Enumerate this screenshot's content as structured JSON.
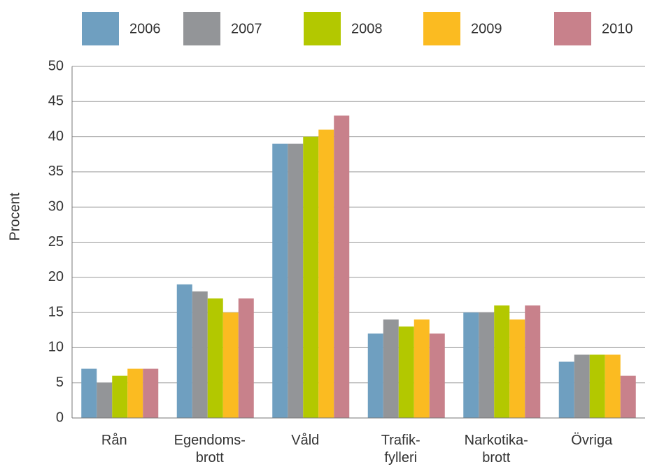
{
  "chart_data": {
    "type": "bar",
    "y_label": "Procent",
    "categories": [
      "Rån",
      "Egendoms-\nbrott",
      "Våld",
      "Trafik-\nfylleri",
      "Narkotika-\nbrott",
      "Övriga"
    ],
    "series": [
      {
        "name": "2006",
        "color": "#6f9fc0",
        "values": [
          7,
          19,
          39,
          12,
          15,
          8
        ]
      },
      {
        "name": "2007",
        "color": "#939598",
        "values": [
          5,
          18,
          39,
          14,
          15,
          9
        ]
      },
      {
        "name": "2008",
        "color": "#b3c800",
        "values": [
          6,
          17,
          40,
          13,
          16,
          9
        ]
      },
      {
        "name": "2009",
        "color": "#fbbb21",
        "values": [
          7,
          15,
          41,
          14,
          14,
          9
        ]
      },
      {
        "name": "2010",
        "color": "#c8818b",
        "values": [
          7,
          17,
          43,
          12,
          16,
          6
        ]
      }
    ],
    "ylim": [
      0,
      50
    ],
    "yticks": [
      0,
      5,
      10,
      15,
      20,
      25,
      30,
      35,
      40,
      45,
      50
    ],
    "grid": true,
    "legend": "top"
  }
}
